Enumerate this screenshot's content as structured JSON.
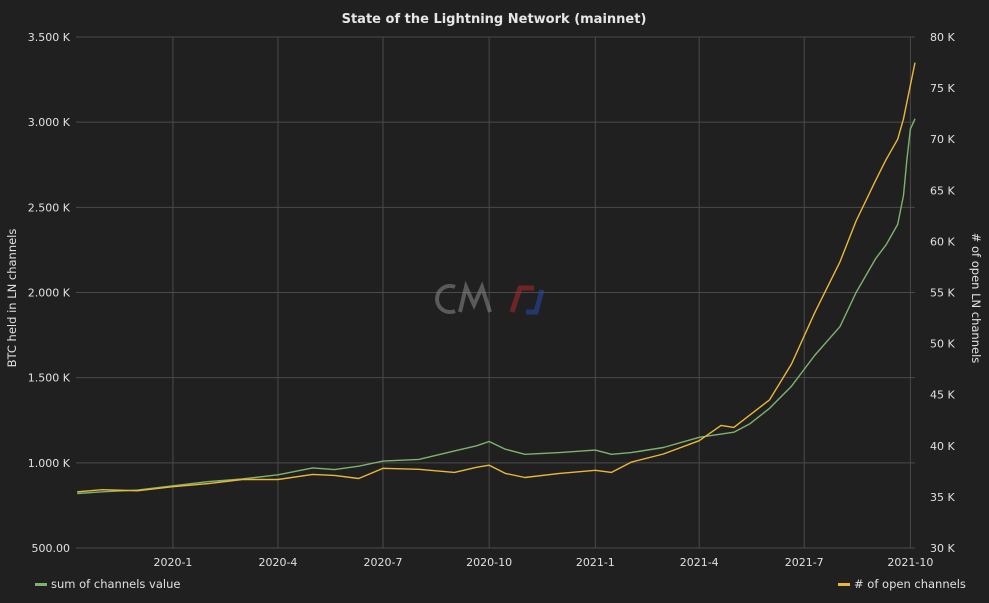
{
  "chart_data": {
    "type": "line",
    "title": "State of the Lightning Network (mainnet)",
    "ylabel": "BTC held in LN channels",
    "y2label": "# of open LN channels",
    "x_ticks": [
      "2020-1",
      "2020-4",
      "2020-7",
      "2020-10",
      "2021-1",
      "2021-4",
      "2021-7",
      "2021-10"
    ],
    "y_ticks": [
      "500.00",
      "1.000 K",
      "1.500 K",
      "2.000 K",
      "2.500 K",
      "3.000 K",
      "3.500 K"
    ],
    "y2_ticks": [
      "30 K",
      "35 K",
      "40 K",
      "45 K",
      "50 K",
      "55 K",
      "60 K",
      "65 K",
      "70 K",
      "75 K",
      "80 K"
    ],
    "ylim": [
      500,
      3500
    ],
    "y2lim": [
      30000,
      80000
    ],
    "xlim": [
      "2019-10-09",
      "2021-10-05"
    ],
    "grid": true,
    "legend_placement": "bottom",
    "colors": {
      "value_series": "#7eb26d",
      "channels_series": "#eab839"
    },
    "series": [
      {
        "name": "sum of channels value",
        "axis": "left",
        "x": [
          "2019-10-10",
          "2019-11-01",
          "2019-12-01",
          "2020-01-01",
          "2020-02-01",
          "2020-03-01",
          "2020-04-01",
          "2020-05-01",
          "2020-05-20",
          "2020-06-10",
          "2020-07-01",
          "2020-08-01",
          "2020-09-01",
          "2020-09-20",
          "2020-10-01",
          "2020-10-15",
          "2020-11-01",
          "2020-12-01",
          "2021-01-01",
          "2021-01-15",
          "2021-02-01",
          "2021-03-01",
          "2021-04-01",
          "2021-05-01",
          "2021-05-15",
          "2021-06-01",
          "2021-06-20",
          "2021-07-10",
          "2021-08-01",
          "2021-08-15",
          "2021-09-01",
          "2021-09-10",
          "2021-09-20",
          "2021-09-25",
          "2021-09-28",
          "2021-10-01",
          "2021-10-05"
        ],
        "values": [
          820,
          830,
          840,
          865,
          890,
          905,
          930,
          970,
          960,
          980,
          1010,
          1020,
          1070,
          1100,
          1125,
          1080,
          1050,
          1060,
          1075,
          1050,
          1060,
          1090,
          1150,
          1180,
          1230,
          1320,
          1450,
          1630,
          1800,
          2000,
          2200,
          2280,
          2400,
          2570,
          2780,
          2960,
          3020
        ]
      },
      {
        "name": "# of open channels",
        "axis": "right",
        "x": [
          "2019-10-10",
          "2019-11-01",
          "2019-12-01",
          "2020-01-01",
          "2020-02-01",
          "2020-03-01",
          "2020-04-01",
          "2020-05-01",
          "2020-05-20",
          "2020-06-10",
          "2020-07-01",
          "2020-08-01",
          "2020-09-01",
          "2020-09-20",
          "2020-10-01",
          "2020-10-15",
          "2020-11-01",
          "2020-12-01",
          "2021-01-01",
          "2021-01-15",
          "2021-02-01",
          "2021-03-01",
          "2021-04-01",
          "2021-04-20",
          "2021-05-01",
          "2021-06-01",
          "2021-06-20",
          "2021-07-10",
          "2021-08-01",
          "2021-08-15",
          "2021-09-01",
          "2021-09-10",
          "2021-09-20",
          "2021-09-25",
          "2021-10-05"
        ],
        "values": [
          35500,
          35700,
          35600,
          36000,
          36300,
          36700,
          36700,
          37200,
          37100,
          36800,
          37800,
          37700,
          37400,
          37900,
          38100,
          37300,
          36900,
          37300,
          37600,
          37400,
          38400,
          39200,
          40500,
          42000,
          41800,
          44500,
          48000,
          53000,
          58000,
          62000,
          66000,
          68000,
          70000,
          72000,
          77500
        ]
      }
    ]
  }
}
